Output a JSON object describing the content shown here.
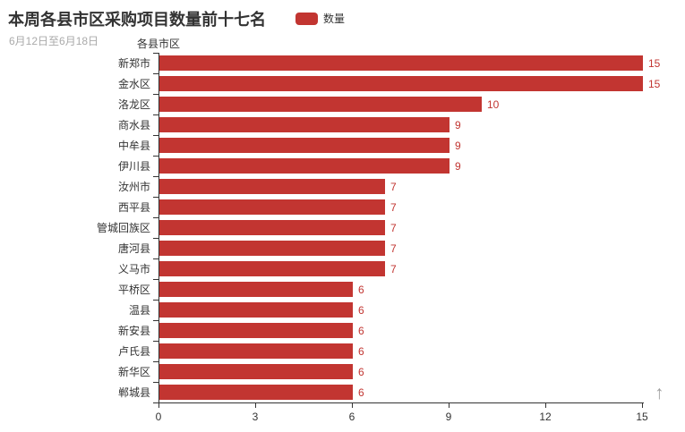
{
  "title": {
    "text": "本周各县市区采购项目数量前十七名",
    "subtext": "6月12日至6月18日"
  },
  "legend": {
    "label": "数量"
  },
  "y_axis_name": "各县市区",
  "misc": {
    "up_arrow": "↑"
  },
  "colors": {
    "bar": "#c23531",
    "value_label": "#c23531",
    "axis": "#333333",
    "tick_label": "#333333",
    "category_label": "#333333",
    "title": "#333333",
    "subtitle": "#aaaaaa"
  },
  "chart_data": {
    "type": "bar",
    "orientation": "horizontal",
    "title": "本周各县市区采购项目数量前十七名",
    "subtitle": "6月12日至6月18日",
    "series_name": "数量",
    "categories": [
      "新郑市",
      "金水区",
      "洛龙区",
      "商水县",
      "中牟县",
      "伊川县",
      "汝州市",
      "西平县",
      "管城回族区",
      "唐河县",
      "义马市",
      "平桥区",
      "温县",
      "新安县",
      "卢氏县",
      "新华区",
      "郸城县"
    ],
    "values": [
      15,
      15,
      10,
      9,
      9,
      9,
      7,
      7,
      7,
      7,
      7,
      6,
      6,
      6,
      6,
      6,
      6
    ],
    "xlabel": "",
    "ylabel": "各县市区",
    "xlim": [
      0,
      15
    ],
    "x_ticks": [
      0,
      3,
      6,
      9,
      12,
      15
    ],
    "grid": false,
    "legend_position": "top",
    "value_labels_shown": true,
    "bar_color": "#c23531"
  }
}
